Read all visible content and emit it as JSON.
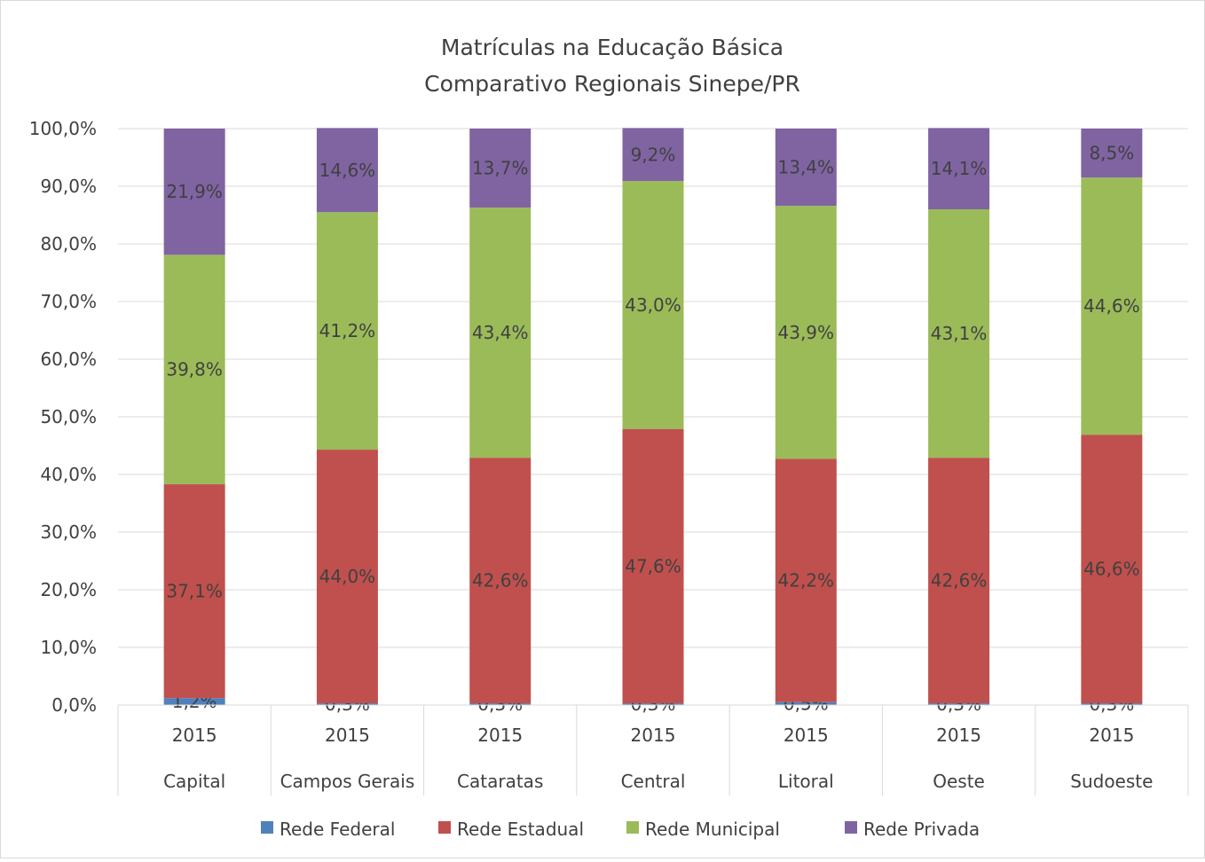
{
  "chart_data": {
    "type": "bar",
    "stacked": true,
    "title": "Matrículas na Educação Básica",
    "subtitle": "Comparativo Regionais Sinepe/PR",
    "xlabel": "",
    "ylabel": "",
    "ylim": [
      0,
      100
    ],
    "yticks": [
      "0,0%",
      "10,0%",
      "20,0%",
      "30,0%",
      "40,0%",
      "50,0%",
      "60,0%",
      "70,0%",
      "80,0%",
      "90,0%",
      "100,0%"
    ],
    "grid": true,
    "legend_position": "bottom",
    "years": [
      "2015",
      "2015",
      "2015",
      "2015",
      "2015",
      "2015",
      "2015"
    ],
    "categories": [
      "Capital",
      "Campos Gerais",
      "Cataratas",
      "Central",
      "Litoral",
      "Oeste",
      "Sudoeste"
    ],
    "series": [
      {
        "name": "Rede Federal",
        "color": "#4f81bd",
        "values": [
          1.2,
          0.3,
          0.3,
          0.3,
          0.5,
          0.3,
          0.3
        ],
        "labels": [
          "1,2%",
          "0,3%",
          "0,3%",
          "0,3%",
          "0,5%",
          "0,3%",
          "0,3%"
        ]
      },
      {
        "name": "Rede Estadual",
        "color": "#c0504d",
        "values": [
          37.1,
          44.0,
          42.6,
          47.6,
          42.2,
          42.6,
          46.6
        ],
        "labels": [
          "37,1%",
          "44,0%",
          "42,6%",
          "47,6%",
          "42,2%",
          "42,6%",
          "46,6%"
        ]
      },
      {
        "name": "Rede Municipal",
        "color": "#9bbb59",
        "values": [
          39.8,
          41.2,
          43.4,
          43.0,
          43.9,
          43.1,
          44.6
        ],
        "labels": [
          "39,8%",
          "41,2%",
          "43,4%",
          "43,0%",
          "43,9%",
          "43,1%",
          "44,6%"
        ]
      },
      {
        "name": "Rede Privada",
        "color": "#8064a2",
        "values": [
          21.9,
          14.6,
          13.7,
          9.2,
          13.4,
          14.1,
          8.5
        ],
        "labels": [
          "21,9%",
          "14,6%",
          "13,7%",
          "9,2%",
          "13,4%",
          "14,1%",
          "8,5%"
        ]
      }
    ]
  }
}
